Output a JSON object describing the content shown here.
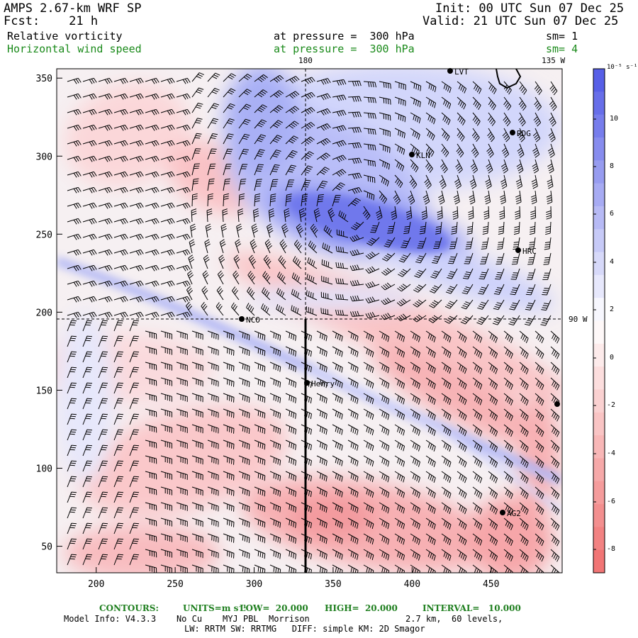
{
  "header": {
    "title": "AMPS 2.67-km WRF SP",
    "forecast": "Fcst:    21 h",
    "init": "Init: 00 UTC Sun 07 Dec 25",
    "valid": "Valid: 21 UTC Sun 07 Dec 25",
    "field1_name": "Relative vorticity",
    "field1_level": "at pressure =  300 hPa",
    "field1_smooth": "sm= 1",
    "field2_name": "Horizontal wind speed",
    "field2_level": "at pressure =  300 hPa",
    "field2_smooth": "sm= 4"
  },
  "map": {
    "meridian_label_180": "180",
    "meridian_label_135w": "135 W",
    "parallel_label_90w": "90 W",
    "x_ticks": [
      "200",
      "250",
      "300",
      "350",
      "400",
      "450"
    ],
    "y_ticks": [
      "350",
      "300",
      "250",
      "200",
      "150",
      "100",
      "50"
    ],
    "stations": [
      "LVT",
      "RDG",
      "KLN",
      "HRC",
      "NCO",
      "Henry",
      "AG2",
      ""
    ]
  },
  "colorbar": {
    "unit_label": "10⁻⁵ s⁻¹",
    "labels": [
      "10",
      "8",
      "6",
      "4",
      "2",
      "0",
      "-2",
      "-4",
      "-6",
      "-8"
    ],
    "colors": {
      "positive_max": "#4f57e6",
      "neutral": "#ffffff",
      "negative_max": "#f06e6e"
    }
  },
  "footer": {
    "contours_title": "CONTOURS:",
    "units": "UNITS=m s⁻¹",
    "low": "LOW=  20.000",
    "high": "HIGH=  20.000",
    "interval": "INTERVAL=   10.000",
    "model_info": "Model Info: V4.3.3    No Cu    MYJ PBL  Morrison",
    "grid_info": "2.7 km,  60 levels,",
    "physics_info": "LW: RRTM SW: RRTMG   DIFF: simple KM: 2D Smagor"
  }
}
